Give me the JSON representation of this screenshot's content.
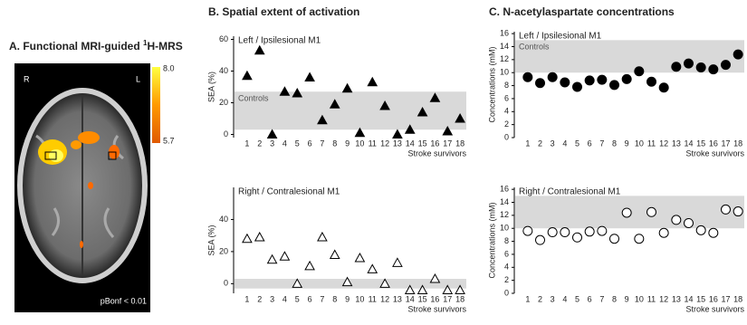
{
  "image_panel": {
    "title": "A. Functional MRI-guided ",
    "title_sup": "1",
    "title_end": "H-MRS",
    "left_side": "R",
    "right_side": "L",
    "note": "pBonf < 0.01",
    "colorbar_ticks": [
      {
        "value": 8,
        "label": "8.0"
      },
      {
        "value": 5.7,
        "label": "5.7"
      }
    ]
  },
  "headers": [
    "B. Spatial extent of activation",
    "C. N-acetylaspartate concentrations"
  ],
  "chart_data": [
    {
      "type": "scatter",
      "title": "Left / Ipsilesional M1",
      "y_label": "SEA (%)",
      "x_label": "Stroke survivors",
      "marker": "triangle",
      "filled": true,
      "color": "#000000",
      "categories": [
        "1",
        "2",
        "3",
        "4",
        "5",
        "6",
        "7",
        "8",
        "9",
        "10",
        "11",
        "12",
        "13",
        "14",
        "15",
        "16",
        "17",
        "18"
      ],
      "values": [
        37,
        53,
        0,
        27,
        26,
        36,
        9,
        19,
        29,
        1,
        33,
        18,
        0,
        3,
        14,
        23,
        2,
        10
      ],
      "band": [
        3,
        27
      ],
      "band_label": "Controls",
      "ylim": [
        -2,
        62
      ],
      "yticks": [
        0,
        20,
        40,
        60
      ]
    },
    {
      "type": "scatter",
      "title": "Right / Contralesional M1",
      "y_label": "SEA (%)",
      "x_label": "Stroke survivors",
      "marker": "triangle",
      "filled": false,
      "color": "#000000",
      "categories": [
        "1",
        "2",
        "3",
        "4",
        "5",
        "6",
        "7",
        "8",
        "9",
        "10",
        "11",
        "12",
        "13",
        "14",
        "15",
        "16",
        "17",
        "18"
      ],
      "values": [
        28,
        29,
        15,
        17,
        0,
        11,
        29,
        18,
        1,
        16,
        9,
        0,
        13,
        -4,
        -4,
        3,
        -4,
        -4
      ],
      "band": [
        -3,
        3
      ],
      "ylim": [
        -6,
        60
      ],
      "yticks": [
        0,
        20,
        40
      ]
    },
    {
      "type": "scatter",
      "title": "Left / Ipsilesional M1",
      "y_label": "Concentrations (mM)",
      "x_label": "Stroke survivors",
      "marker": "circle",
      "filled": true,
      "color": "#000000",
      "categories": [
        "1",
        "2",
        "3",
        "4",
        "5",
        "6",
        "7",
        "8",
        "9",
        "10",
        "11",
        "12",
        "13",
        "14",
        "15",
        "16",
        "17",
        "18"
      ],
      "values": [
        9.3,
        8.4,
        9.3,
        8.5,
        7.8,
        8.8,
        8.9,
        8.1,
        9.0,
        10.2,
        8.6,
        7.7,
        10.9,
        11.4,
        10.8,
        10.5,
        11.2,
        12.8
      ],
      "band": [
        10,
        15
      ],
      "band_label": "Controls",
      "ylim": [
        0,
        16.3
      ],
      "yticks": [
        0,
        2,
        4,
        6,
        8,
        10,
        12,
        14,
        16
      ]
    },
    {
      "type": "scatter",
      "title": "Right / Contralesional M1",
      "y_label": "Concentrations (mM)",
      "x_label": "Stroke survivors",
      "marker": "circle",
      "filled": false,
      "color": "#000000",
      "categories": [
        "1",
        "2",
        "3",
        "4",
        "5",
        "6",
        "7",
        "8",
        "9",
        "10",
        "11",
        "12",
        "13",
        "14",
        "15",
        "16",
        "17",
        "18"
      ],
      "values": [
        9.6,
        8.2,
        9.4,
        9.4,
        8.6,
        9.5,
        9.6,
        8.4,
        12.4,
        8.4,
        12.5,
        9.3,
        11.3,
        10.8,
        9.7,
        9.3,
        12.9,
        12.6
      ],
      "band": [
        10,
        15
      ],
      "ylim": [
        0,
        16.3
      ],
      "yticks": [
        0,
        2,
        4,
        6,
        8,
        10,
        12,
        14,
        16
      ]
    }
  ]
}
